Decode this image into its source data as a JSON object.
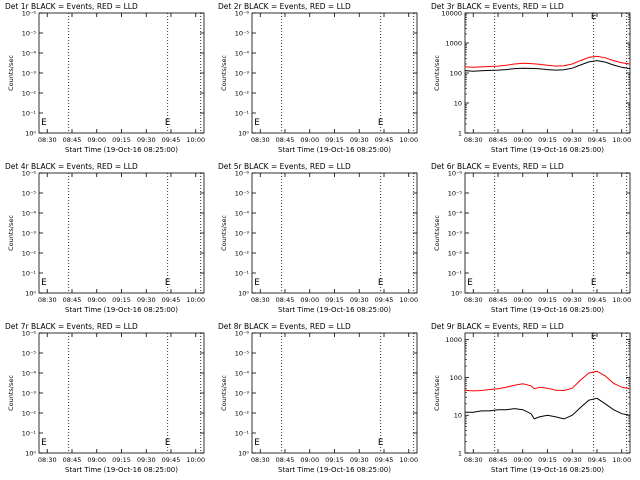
{
  "page": {
    "background": "#ffffff",
    "axis_color": "#000000",
    "events_color": "#000000",
    "lld_color": "#ff0000"
  },
  "chart_data": [
    {
      "type": "line",
      "title": "Det 1r BLACK = Events, RED = LLD",
      "xlabel": "Start Time (19-Oct-16 08:25:00)",
      "ylabel": "Counts/sec",
      "x_ticks": [
        "08:30",
        "08:45",
        "09:00",
        "09:15",
        "09:30",
        "09:45",
        "10:00"
      ],
      "y_ticks": [
        "10⁰",
        "10⁻¹",
        "10⁻²",
        "10⁻³",
        "10⁻⁴",
        "10⁻⁵",
        "10⁻⁶"
      ],
      "y_scale": "log",
      "xlim": [
        "08:25",
        "10:05"
      ],
      "ylim": [
        1e-06,
        1
      ],
      "vlines": [
        "08:43",
        "09:43",
        "10:03"
      ],
      "marker_label": "E",
      "marker_label_x": "09:43",
      "marker_label_y": 1e-05,
      "left_marker": "E",
      "series": []
    },
    {
      "type": "line",
      "title": "Det 2r BLACK = Events, RED = LLD",
      "xlabel": "Start Time (19-Oct-16 08:25:00)",
      "ylabel": "Counts/sec",
      "x_ticks": [
        "08:30",
        "08:45",
        "09:00",
        "09:15",
        "09:30",
        "09:45",
        "10:00"
      ],
      "y_ticks": [
        "10⁰",
        "10⁻¹",
        "10⁻²",
        "10⁻³",
        "10⁻⁴",
        "10⁻⁵",
        "10⁻⁶"
      ],
      "y_scale": "log",
      "xlim": [
        "08:25",
        "10:05"
      ],
      "ylim": [
        1e-06,
        1
      ],
      "vlines": [
        "08:43",
        "09:43",
        "10:03"
      ],
      "marker_label": "E",
      "marker_label_x": "09:43",
      "marker_label_y": 1e-05,
      "left_marker": "E",
      "series": []
    },
    {
      "type": "line",
      "title": "Det 3r BLACK = Events, RED = LLD",
      "xlabel": "Start Time (19-Oct-16 08:25:00)",
      "ylabel": "Counts/sec",
      "x_ticks": [
        "08:30",
        "08:45",
        "09:00",
        "09:15",
        "09:30",
        "09:45",
        "10:00"
      ],
      "y_ticks": [
        "1",
        "10",
        "100",
        "1000",
        "10000"
      ],
      "y_scale": "log",
      "xlim": [
        "08:25",
        "10:05"
      ],
      "ylim": [
        1,
        10000
      ],
      "vlines": [
        "08:43",
        "09:43",
        "10:03"
      ],
      "marker_label": "E",
      "marker_label_x": "09:43",
      "marker_label_y": 15000,
      "left_marker": "",
      "series": [
        {
          "color": "#ff0000",
          "x": [
            "08:25",
            "08:30",
            "08:35",
            "08:40",
            "08:45",
            "08:50",
            "08:55",
            "09:00",
            "09:05",
            "09:10",
            "09:15",
            "09:20",
            "09:25",
            "09:30",
            "09:35",
            "09:40",
            "09:45",
            "09:50",
            "09:55",
            "10:00",
            "10:05"
          ],
          "y": [
            160,
            155,
            160,
            165,
            170,
            180,
            200,
            210,
            205,
            195,
            180,
            170,
            175,
            200,
            260,
            330,
            360,
            320,
            260,
            220,
            200
          ]
        },
        {
          "color": "#000000",
          "x": [
            "08:25",
            "08:30",
            "08:35",
            "08:40",
            "08:45",
            "08:50",
            "08:55",
            "09:00",
            "09:05",
            "09:10",
            "09:15",
            "09:20",
            "09:25",
            "09:30",
            "09:35",
            "09:40",
            "09:45",
            "09:50",
            "09:55",
            "10:00",
            "10:05"
          ],
          "y": [
            120,
            115,
            118,
            122,
            125,
            130,
            140,
            145,
            142,
            138,
            130,
            125,
            128,
            145,
            185,
            235,
            260,
            230,
            185,
            155,
            140
          ]
        }
      ]
    },
    {
      "type": "line",
      "title": "Det 4r BLACK = Events, RED = LLD",
      "xlabel": "Start Time (19-Oct-16 08:25:00)",
      "ylabel": "Counts/sec",
      "x_ticks": [
        "08:30",
        "08:45",
        "09:00",
        "09:15",
        "09:30",
        "09:45",
        "10:00"
      ],
      "y_ticks": [
        "10⁰",
        "10⁻¹",
        "10⁻²",
        "10⁻³",
        "10⁻⁴",
        "10⁻⁵",
        "10⁻⁶"
      ],
      "y_scale": "log",
      "xlim": [
        "08:25",
        "10:05"
      ],
      "ylim": [
        1e-06,
        1
      ],
      "vlines": [
        "08:43",
        "09:43",
        "10:03"
      ],
      "marker_label": "E",
      "marker_label_x": "09:43",
      "marker_label_y": 1e-05,
      "left_marker": "E",
      "series": []
    },
    {
      "type": "line",
      "title": "Det 5r BLACK = Events, RED = LLD",
      "xlabel": "Start Time (19-Oct-16 08:25:00)",
      "ylabel": "Counts/sec",
      "x_ticks": [
        "08:30",
        "08:45",
        "09:00",
        "09:15",
        "09:30",
        "09:45",
        "10:00"
      ],
      "y_ticks": [
        "10⁰",
        "10⁻¹",
        "10⁻²",
        "10⁻³",
        "10⁻⁴",
        "10⁻⁵",
        "10⁻⁶"
      ],
      "y_scale": "log",
      "xlim": [
        "08:25",
        "10:05"
      ],
      "ylim": [
        1e-06,
        1
      ],
      "vlines": [
        "08:43",
        "09:43",
        "10:03"
      ],
      "marker_label": "E",
      "marker_label_x": "09:43",
      "marker_label_y": 1e-05,
      "left_marker": "E",
      "series": []
    },
    {
      "type": "line",
      "title": "Det 6r BLACK = Events, RED = LLD",
      "xlabel": "Start Time (19-Oct-16 08:25:00)",
      "ylabel": "Counts/sec",
      "x_ticks": [
        "08:30",
        "08:45",
        "09:00",
        "09:15",
        "09:30",
        "09:45",
        "10:00"
      ],
      "y_ticks": [
        "10⁰",
        "10⁻¹",
        "10⁻²",
        "10⁻³",
        "10⁻⁴",
        "10⁻⁵",
        "10⁻⁶"
      ],
      "y_scale": "log",
      "xlim": [
        "08:25",
        "10:05"
      ],
      "ylim": [
        1e-06,
        1
      ],
      "vlines": [
        "08:43",
        "09:43",
        "10:03"
      ],
      "marker_label": "E",
      "marker_label_x": "09:43",
      "marker_label_y": 1e-05,
      "left_marker": "E",
      "series": []
    },
    {
      "type": "line",
      "title": "Det 7r BLACK = Events, RED = LLD",
      "xlabel": "Start Time (19-Oct-16 08:25:00)",
      "ylabel": "Counts/sec",
      "x_ticks": [
        "08:30",
        "08:45",
        "09:00",
        "09:15",
        "09:30",
        "09:45",
        "10:00"
      ],
      "y_ticks": [
        "10⁰",
        "10⁻¹",
        "10⁻²",
        "10⁻³",
        "10⁻⁴",
        "10⁻⁵",
        "10⁻⁶"
      ],
      "y_scale": "log",
      "xlim": [
        "08:25",
        "10:05"
      ],
      "ylim": [
        1e-06,
        1
      ],
      "vlines": [
        "08:43",
        "09:43",
        "10:03"
      ],
      "marker_label": "E",
      "marker_label_x": "09:43",
      "marker_label_y": 1e-05,
      "left_marker": "E",
      "series": []
    },
    {
      "type": "line",
      "title": "Det 8r BLACK = Events, RED = LLD",
      "xlabel": "Start Time (19-Oct-16 08:25:00)",
      "ylabel": "Counts/sec",
      "x_ticks": [
        "08:30",
        "08:45",
        "09:00",
        "09:15",
        "09:30",
        "09:45",
        "10:00"
      ],
      "y_ticks": [
        "10⁰",
        "10⁻¹",
        "10⁻²",
        "10⁻³",
        "10⁻⁴",
        "10⁻⁵",
        "10⁻⁶"
      ],
      "y_scale": "log",
      "xlim": [
        "08:25",
        "10:05"
      ],
      "ylim": [
        1e-06,
        1
      ],
      "vlines": [
        "08:43",
        "09:43",
        "10:03"
      ],
      "marker_label": "E",
      "marker_label_x": "09:43",
      "marker_label_y": 1e-05,
      "left_marker": "E",
      "series": []
    },
    {
      "type": "line",
      "title": "Det 9r BLACK = Events, RED = LLD",
      "xlabel": "Start Time (19-Oct-16 08:25:00)",
      "ylabel": "Counts/sec",
      "x_ticks": [
        "08:30",
        "08:45",
        "09:00",
        "09:15",
        "09:30",
        "09:45",
        "10:00"
      ],
      "y_ticks": [
        "1",
        "10",
        "100",
        "1000"
      ],
      "y_scale": "log",
      "xlim": [
        "08:25",
        "10:05"
      ],
      "ylim": [
        1,
        1500
      ],
      "vlines": [
        "08:43",
        "09:43",
        "10:03"
      ],
      "marker_label": "E",
      "marker_label_x": "09:43",
      "marker_label_y": 1400,
      "left_marker": "",
      "series": [
        {
          "color": "#ff0000",
          "x": [
            "08:25",
            "08:30",
            "08:35",
            "08:40",
            "08:45",
            "08:50",
            "08:55",
            "09:00",
            "09:05",
            "09:07",
            "09:10",
            "09:15",
            "09:20",
            "09:25",
            "09:30",
            "09:35",
            "09:40",
            "09:45",
            "09:50",
            "09:55",
            "10:00",
            "10:05"
          ],
          "y": [
            46,
            44,
            45,
            48,
            50,
            55,
            62,
            68,
            60,
            50,
            55,
            52,
            46,
            45,
            52,
            85,
            130,
            145,
            110,
            70,
            55,
            50
          ]
        },
        {
          "color": "#000000",
          "x": [
            "08:25",
            "08:30",
            "08:35",
            "08:40",
            "08:45",
            "08:50",
            "08:55",
            "09:00",
            "09:05",
            "09:07",
            "09:10",
            "09:15",
            "09:20",
            "09:25",
            "09:30",
            "09:35",
            "09:40",
            "09:45",
            "09:50",
            "09:55",
            "10:00",
            "10:05"
          ],
          "y": [
            12,
            12,
            13,
            13,
            14,
            14,
            15,
            14,
            11,
            8,
            9,
            10,
            9,
            8,
            10,
            16,
            25,
            28,
            20,
            14,
            11,
            10
          ]
        }
      ]
    }
  ]
}
